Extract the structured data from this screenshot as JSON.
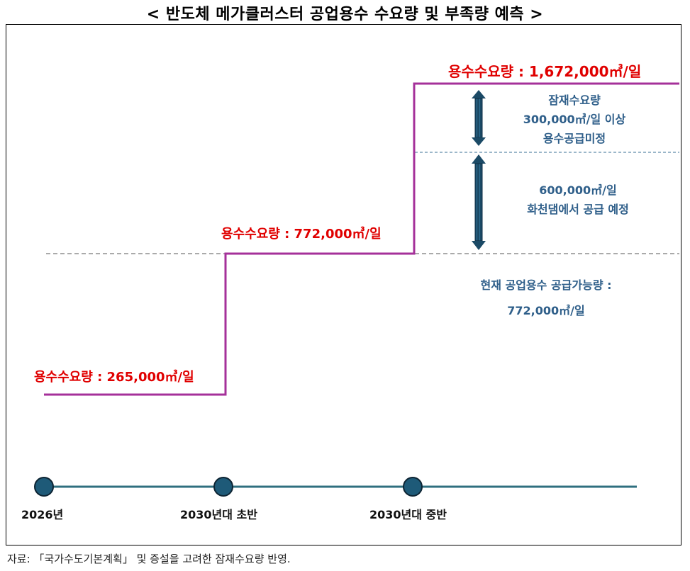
{
  "title": "< 반도체 메가클러스터 공업용수 수요량 및 부족량 예측 >",
  "demand_labels": {
    "d2026": "용수수요량 : 265,000㎥/일",
    "d2030_early": "용수수요량 : 772,000㎥/일",
    "d2030_mid": "용수수요량 : 1,672,000㎥/일"
  },
  "annotations": {
    "potential_line1": "잠재수요량",
    "potential_line2": "300,000㎥/일 이상",
    "potential_line3": "용수공급미정",
    "hwacheon_line1": "600,000㎥/일",
    "hwacheon_line2": "화천댐에서 공급 예정",
    "current_line1": "현재 공업용수 공급가능량 :",
    "current_line2": "772,000㎥/일"
  },
  "timeline": {
    "t1": "2026년",
    "t2": "2030년대 초반",
    "t3": "2030년대 중반"
  },
  "colors": {
    "step_line": "#a5309a",
    "demand_text": "#e00000",
    "annotation_text": "#2f5f8a",
    "arrow": "#1b4a66",
    "timeline": "#2f6f7f"
  },
  "source": "자료: 「국가수도기본계획」 및 증설을 고려한 잠재수요량 반영."
}
